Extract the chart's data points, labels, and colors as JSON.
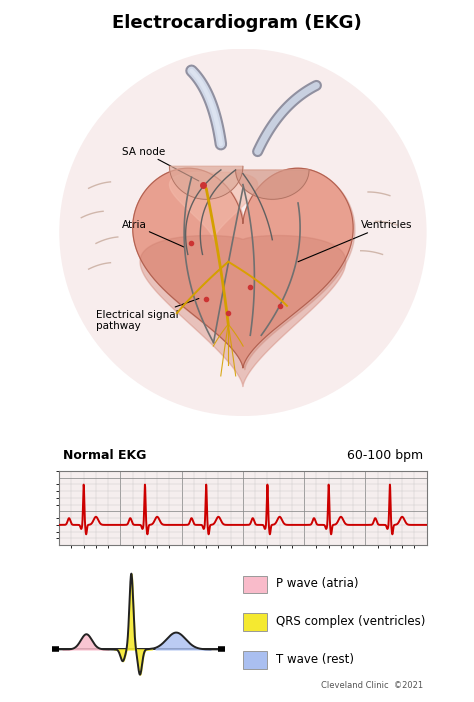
{
  "title": "Electrocardiogram (EKG)",
  "title_fontsize": 13,
  "title_fontweight": "bold",
  "normal_ekg_label": "Normal EKG",
  "bpm_label": "60-100 bpm",
  "legend_items": [
    {
      "label": "P wave (atria)",
      "color": "#F9BBCA"
    },
    {
      "label": "QRS complex (ventricles)",
      "color": "#F5E930"
    },
    {
      "label": "T wave (rest)",
      "color": "#AABFF0"
    }
  ],
  "legend_fontsize": 8.5,
  "ekg_color": "#CC0000",
  "grid_color_major": "#888888",
  "grid_color_minor": "#BBBBBB",
  "background_color": "#FFFFFF",
  "credit_text": "Cleveland Clinic  ©2021",
  "annotations": [
    {
      "text": "SA node",
      "xt": 0.17,
      "yt": 0.72,
      "xa": 0.38,
      "ya": 0.64
    },
    {
      "text": "Atria",
      "xt": 0.17,
      "yt": 0.52,
      "xa": 0.34,
      "ya": 0.46
    },
    {
      "text": "Electrical signal\npathway",
      "xt": 0.1,
      "yt": 0.26,
      "xa": 0.38,
      "ya": 0.32
    },
    {
      "text": "Ventricles",
      "xt": 0.82,
      "yt": 0.52,
      "xa": 0.65,
      "ya": 0.42
    }
  ]
}
